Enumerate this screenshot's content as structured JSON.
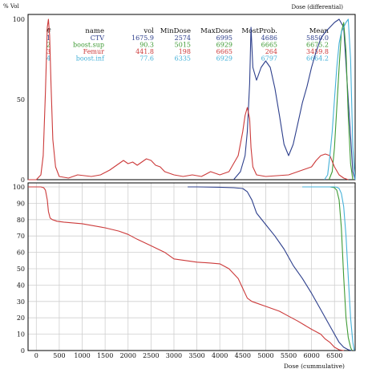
{
  "chart_data": [
    {
      "type": "line",
      "title": "Dose (differential)",
      "ylabel": "% Vol",
      "xlabel": "",
      "xlim": [
        -180,
        6950
      ],
      "ylim": [
        0,
        100
      ],
      "y_ticks": [
        0,
        50,
        100
      ],
      "grid": false,
      "legend": {
        "placement": "top",
        "headers": [
          "#",
          "name",
          "vol",
          "MinDose",
          "MaxDose",
          "MostProb.",
          "Mean"
        ],
        "rows": [
          {
            "id": "1",
            "name": "CTV",
            "vol": "1675.9",
            "min": "2574",
            "max": "6995",
            "most": "4686",
            "mean": "5850.0",
            "color": "#2d3f8c"
          },
          {
            "id": "2",
            "name": "boost.sup",
            "vol": "90.3",
            "min": "5015",
            "max": "6929",
            "most": "6665",
            "mean": "6675.2",
            "color": "#3e9a34"
          },
          {
            "id": "3",
            "name": "Femur",
            "vol": "441.8",
            "min": "198",
            "max": "6665",
            "most": "264",
            "mean": "3459.8",
            "color": "#cc3a3a"
          },
          {
            "id": "4",
            "name": "boost.inf",
            "vol": "77.6",
            "min": "6335",
            "max": "6929",
            "most": "6797",
            "mean": "6664.2",
            "color": "#45b1d8"
          }
        ]
      },
      "series": [
        {
          "name": "CTV",
          "color": "#2d3f8c",
          "x": [
            4300,
            4450,
            4550,
            4600,
            4650,
            4680,
            4720,
            4800,
            4900,
            5000,
            5100,
            5200,
            5300,
            5400,
            5500,
            5600,
            5700,
            5800,
            5900,
            6000,
            6100,
            6200,
            6300,
            6400,
            6500,
            6600,
            6700,
            6800,
            6900,
            6950
          ],
          "y": [
            0,
            5,
            15,
            30,
            60,
            95,
            70,
            62,
            70,
            74,
            70,
            57,
            40,
            22,
            15,
            22,
            35,
            48,
            58,
            70,
            80,
            88,
            92,
            95,
            98,
            100,
            95,
            50,
            5,
            0
          ]
        },
        {
          "name": "boost.sup",
          "color": "#3e9a34",
          "x": [
            6380,
            6450,
            6500,
            6550,
            6600,
            6650,
            6700,
            6750,
            6800,
            6850,
            6900
          ],
          "y": [
            0,
            5,
            20,
            45,
            70,
            92,
            98,
            80,
            40,
            10,
            0
          ]
        },
        {
          "name": "Femur",
          "color": "#cc3a3a",
          "x": [
            -180,
            0,
            100,
            150,
            200,
            240,
            264,
            290,
            320,
            360,
            420,
            500,
            700,
            900,
            1200,
            1400,
            1600,
            1700,
            1800,
            1900,
            2000,
            2100,
            2200,
            2300,
            2400,
            2500,
            2600,
            2700,
            2800,
            3000,
            3200,
            3400,
            3600,
            3800,
            4000,
            4200,
            4400,
            4500,
            4550,
            4600,
            4650,
            4680,
            4720,
            4800,
            5000,
            5500,
            6000,
            6100,
            6200,
            6300,
            6400,
            6500,
            6600,
            6700,
            6800
          ],
          "y": [
            0,
            0,
            3,
            15,
            55,
            95,
            100,
            90,
            60,
            25,
            8,
            2,
            1,
            3,
            2,
            3,
            6,
            8,
            10,
            12,
            10,
            11,
            9,
            11,
            13,
            12,
            9,
            8,
            5,
            3,
            2,
            3,
            2,
            5,
            3,
            5,
            15,
            30,
            40,
            45,
            38,
            20,
            8,
            3,
            2,
            3,
            8,
            12,
            15,
            16,
            15,
            8,
            3,
            1,
            0
          ]
        },
        {
          "name": "boost.inf",
          "color": "#45b1d8",
          "x": [
            6280,
            6350,
            6400,
            6450,
            6500,
            6550,
            6600,
            6650,
            6700,
            6750,
            6800,
            6850,
            6900,
            6950
          ],
          "y": [
            0,
            3,
            15,
            30,
            50,
            70,
            85,
            92,
            95,
            98,
            100,
            75,
            20,
            0
          ]
        }
      ]
    },
    {
      "type": "line",
      "title": "",
      "xlabel": "Dose (cummulative)",
      "ylabel": "",
      "xlim": [
        -180,
        6950
      ],
      "ylim": [
        0,
        100
      ],
      "grid": true,
      "x_ticks": [
        0,
        500,
        1000,
        1500,
        2000,
        2500,
        3000,
        3500,
        4000,
        4500,
        5000,
        5500,
        6000,
        6500
      ],
      "y_ticks": [
        0,
        10,
        20,
        30,
        40,
        50,
        60,
        70,
        80,
        90,
        100
      ],
      "series": [
        {
          "name": "CTV",
          "color": "#2d3f8c",
          "x": [
            3300,
            3500,
            4000,
            4300,
            4500,
            4600,
            4700,
            4800,
            5000,
            5200,
            5400,
            5600,
            5800,
            6000,
            6200,
            6400,
            6600,
            6700,
            6800,
            6880
          ],
          "y": [
            100,
            100,
            99.8,
            99.5,
            99,
            97,
            92,
            84,
            77,
            70,
            62,
            52,
            44,
            35,
            25,
            15,
            5,
            2,
            0.5,
            0
          ]
        },
        {
          "name": "boost.sup",
          "color": "#3e9a34",
          "x": [
            5800,
            6000,
            6400,
            6500,
            6550,
            6600,
            6650,
            6700,
            6750,
            6800,
            6850,
            6880
          ],
          "y": [
            100,
            100,
            100,
            99.5,
            98,
            92,
            75,
            45,
            20,
            8,
            2,
            0
          ]
        },
        {
          "name": "Femur",
          "color": "#cc3a3a",
          "x": [
            -180,
            100,
            160,
            200,
            240,
            264,
            300,
            350,
            450,
            600,
            1000,
            1500,
            1800,
            2000,
            2200,
            2500,
            2800,
            3000,
            3500,
            3800,
            4000,
            4200,
            4400,
            4500,
            4600,
            4700,
            5000,
            5300,
            5500,
            5700,
            6000,
            6200,
            6300,
            6400,
            6500,
            6600,
            6700
          ],
          "y": [
            100,
            100,
            99.5,
            98,
            92,
            85,
            81,
            80,
            79,
            78.5,
            77.5,
            75,
            73,
            71,
            68,
            64,
            60,
            56,
            54,
            53.5,
            53,
            50,
            44,
            38,
            32,
            30,
            27,
            24,
            21,
            18,
            13,
            10,
            7,
            5,
            2,
            0.5,
            0
          ]
        },
        {
          "name": "boost.inf",
          "color": "#45b1d8",
          "x": [
            5800,
            6000,
            6500,
            6550,
            6600,
            6650,
            6700,
            6750,
            6800,
            6850,
            6900,
            6930
          ],
          "y": [
            100,
            100,
            100,
            99.8,
            99,
            96,
            88,
            70,
            45,
            20,
            5,
            0
          ]
        }
      ]
    }
  ]
}
